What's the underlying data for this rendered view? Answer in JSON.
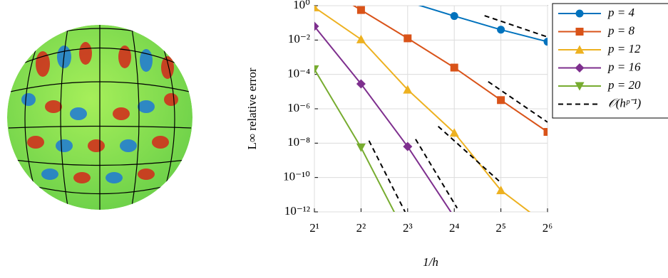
{
  "chart_data": {
    "type": "line",
    "xlabel": "1/h",
    "ylabel": "L∞ relative error",
    "xscale": "log2",
    "yscale": "log10",
    "grid": true,
    "xlim": [
      2,
      64
    ],
    "ylim": [
      1e-12,
      1
    ],
    "xticks": [
      {
        "value": 2,
        "label": "2¹"
      },
      {
        "value": 4,
        "label": "2²"
      },
      {
        "value": 8,
        "label": "2³"
      },
      {
        "value": 16,
        "label": "2⁴"
      },
      {
        "value": 32,
        "label": "2⁵"
      },
      {
        "value": 64,
        "label": "2⁶"
      }
    ],
    "yticks": [
      {
        "value": 1e-12,
        "label": "10⁻¹²"
      },
      {
        "value": 1e-10,
        "label": "10⁻¹⁰"
      },
      {
        "value": 1e-08,
        "label": "10⁻⁸"
      },
      {
        "value": 1e-06,
        "label": "10⁻⁶"
      },
      {
        "value": 0.0001,
        "label": "10⁻⁴"
      },
      {
        "value": 0.01,
        "label": "10⁻²"
      },
      {
        "value": 1,
        "label": "10⁰"
      }
    ],
    "legend": "upper right outside",
    "series": [
      {
        "name": "p = 4",
        "color": "#0072BD",
        "marker": "circle",
        "x": [
          8,
          16,
          32,
          64
        ],
        "values": [
          1.7,
          0.25,
          0.04,
          0.008
        ]
      },
      {
        "name": "p = 8",
        "color": "#D95319",
        "marker": "square",
        "x": [
          2,
          4,
          8,
          16,
          32,
          64
        ],
        "values": [
          25,
          0.56,
          0.0126,
          0.00025,
          3.2e-06,
          4.5e-08
        ]
      },
      {
        "name": "p = 12",
        "color": "#EDB120",
        "marker": "triangle-up",
        "x": [
          2,
          4,
          8,
          16,
          32,
          64
        ],
        "values": [
          0.8,
          0.011,
          1.3e-05,
          4e-08,
          1.8e-11,
          1.6e-13
        ]
      },
      {
        "name": "p = 16",
        "color": "#7E2F8E",
        "marker": "diamond",
        "x": [
          2,
          4,
          8,
          16
        ],
        "values": [
          0.063,
          2.8e-05,
          6.3e-09,
          5e-13
        ]
      },
      {
        "name": "p = 20",
        "color": "#77AC30",
        "marker": "triangle-down",
        "x": [
          2,
          4,
          8
        ],
        "values": [
          0.0002,
          5.6e-09,
          3e-14
        ]
      },
      {
        "name": "𝒪(hᵖ⁻¹)",
        "color": "#000000",
        "dashed": true,
        "segments": [
          {
            "x": [
              25.1,
              64
            ],
            "values": [
              0.263,
              0.0151
            ]
          },
          {
            "x": [
              26.5,
              64
            ],
            "values": [
              3.8e-05,
              1.66e-07
            ]
          },
          {
            "x": [
              12.6,
              31.1
            ],
            "values": [
              9.5e-08,
              6.3e-11
            ]
          },
          {
            "x": [
              9,
              16.7
            ],
            "values": [
              1.7e-08,
              1.66e-12
            ]
          },
          {
            "x": [
              4.5,
              7.7
            ],
            "values": [
              1.4e-08,
              1e-12
            ]
          }
        ]
      }
    ]
  }
}
